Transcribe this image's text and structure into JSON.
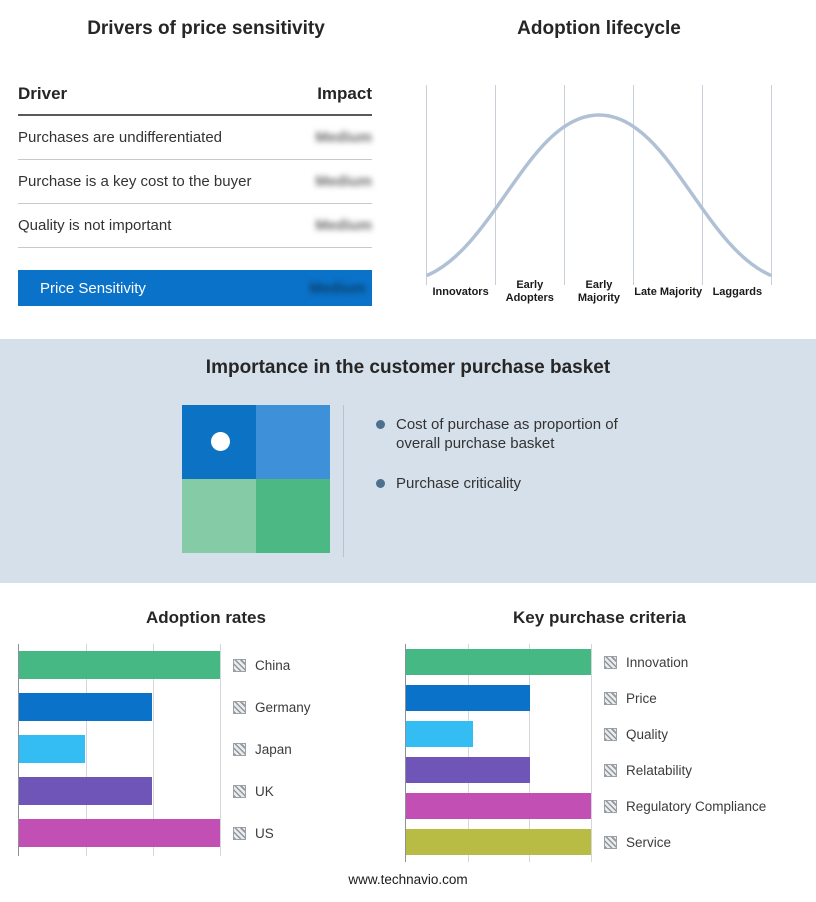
{
  "drivers": {
    "title": "Drivers of price sensitivity",
    "columns": {
      "driver": "Driver",
      "impact": "Impact"
    },
    "rows": [
      {
        "label": "Purchases are undifferentiated",
        "impact": "Medium"
      },
      {
        "label": "Purchase is a key cost to the buyer",
        "impact": "Medium"
      },
      {
        "label": "Quality is not important",
        "impact": "Medium"
      }
    ],
    "summary": {
      "label": "Price Sensitivity",
      "impact": "Medium"
    },
    "accent_color": "#0b72c9",
    "impact_values_redacted": true
  },
  "basket": {
    "title": "Importance in the customer purchase basket",
    "bullets": [
      "Cost of purchase as proportion of overall purchase basket",
      "Purchase criticality"
    ],
    "quadrant_colors": {
      "top_left": "#0b72c4",
      "top_right": "#3e90d9",
      "bottom_left": "#85cba6",
      "bottom_right": "#4cb985"
    },
    "marker": "white-dot-top-left"
  },
  "chart_data": [
    {
      "type": "line",
      "shape": "bell-curve",
      "title": "Adoption lifecycle",
      "categories": [
        "Innovators",
        "Early Adopters",
        "Early Majority",
        "Late Majority",
        "Laggards"
      ],
      "values": [
        8,
        55,
        100,
        55,
        8
      ],
      "curve_color": "#b0c1d6",
      "grid": true,
      "peak_stage": "Early Majority"
    },
    {
      "type": "bar",
      "orientation": "horizontal",
      "title": "Adoption rates",
      "categories": [
        "China",
        "Germany",
        "Japan",
        "UK",
        "US"
      ],
      "values": [
        100,
        66,
        33,
        66,
        100
      ],
      "colors": [
        "#45b884",
        "#0b72c9",
        "#33bdf2",
        "#6f55b8",
        "#c14fb4"
      ],
      "xlim": [
        0,
        100
      ],
      "grid": true,
      "legend_position": "right"
    },
    {
      "type": "bar",
      "orientation": "horizontal",
      "title": "Key purchase criteria",
      "categories": [
        "Innovation",
        "Price",
        "Quality",
        "Relatability",
        "Regulatory Compliance",
        "Service"
      ],
      "values": [
        100,
        67,
        36,
        67,
        100,
        100
      ],
      "colors": [
        "#45b884",
        "#0b72c9",
        "#33bdf2",
        "#6f55b8",
        "#c14fb4",
        "#b8bb44"
      ],
      "xlim": [
        0,
        100
      ],
      "grid": true,
      "legend_position": "right"
    }
  ],
  "footer": {
    "url": "www.technavio.com"
  }
}
